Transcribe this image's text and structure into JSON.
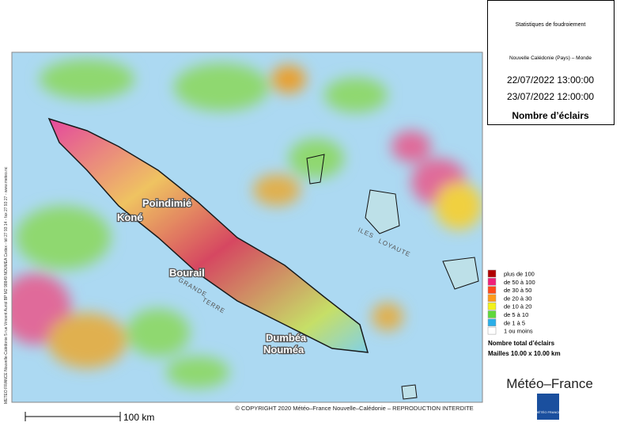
{
  "header": {
    "title": "Statistiques de foudroiement",
    "region": "Nouvelle Calédonie (Pays) – Monde",
    "start": "22/07/2022 13:00:00",
    "end": "23/07/2022 12:00:00",
    "measure": "Nombre d’éclairs"
  },
  "legend": {
    "items": [
      {
        "label": "plus de 100",
        "color": "#b00000"
      },
      {
        "label": "de 50 à 100",
        "color": "#f0207a"
      },
      {
        "label": "de 30 à 50",
        "color": "#ff4a1a"
      },
      {
        "label": "de 20 à 30",
        "color": "#ff9a1a"
      },
      {
        "label": "de 10 à 20",
        "color": "#f2f21a"
      },
      {
        "label": "de 5 à 10",
        "color": "#5fd83a"
      },
      {
        "label": "de 1 à 5",
        "color": "#2aaee8"
      },
      {
        "label": "1 ou moins",
        "color": "#ffffff"
      }
    ],
    "total": "Nombre total d’éclairs",
    "mesh": "Mailles 10.00 x 10.00 km"
  },
  "brand": "Météo–France",
  "logo": "MÉTÉO FRANCE",
  "places": [
    "Poindimié",
    "Koné",
    "Bourail",
    "Dumbéa",
    "Nouméa",
    "ILES",
    "LOYAUTE",
    "GRANDE",
    "TERRE"
  ],
  "copyright": "© COPYRIGHT 2020 Météo–France Nouvelle–Calédonie – REPRODUCTION INTERDITE",
  "address": "METEO FRANCE Nouvelle-Calédonie 5 rue Vincent Auriol BP M2 98849 NOUMEA Cedex - tél 27 93 14 - fax 27 93 27 - www.meteo.nc",
  "scale": "100 km"
}
